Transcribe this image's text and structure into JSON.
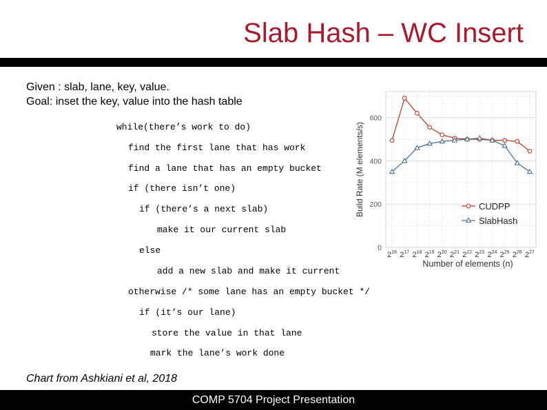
{
  "slide": {
    "title": "Slab Hash – WC Insert",
    "intro_line1": "Given : slab, lane, key, value.",
    "intro_line2": "Goal: inset the key, value into the hash table",
    "code_lines": [
      "while(there’s work to do)",
      "find the first lane that has work",
      "find a lane that has an empty bucket",
      "if (there isn’t one)",
      "if (there’s a next slab)",
      "make it our current slab",
      "else",
      "add a new slab and make it current",
      "otherwise /* some lane has an empty bucket */",
      "if (it’s our lane)",
      "store the value in that lane",
      "mark the lane’s work done"
    ],
    "caption": "Chart from Ashkiani et al, 2018",
    "footer": "COMP 5704 Project Presentation",
    "colors": {
      "title": "#a6192e",
      "bars": "#000000"
    }
  },
  "chart_data": {
    "type": "line",
    "xlabel": "Number of elements (n)",
    "ylabel": "Build Rate (M elements/s)",
    "x_tick_labels": [
      "2^16",
      "2^17",
      "2^18",
      "2^19",
      "2^20",
      "2^21",
      "2^22",
      "2^23",
      "2^24",
      "2^25",
      "2^26",
      "2^27"
    ],
    "x": [
      16,
      17,
      18,
      19,
      20,
      21,
      22,
      23,
      24,
      25,
      26,
      27
    ],
    "y_ticks": [
      0,
      200,
      400,
      600
    ],
    "ylim": [
      0,
      720
    ],
    "grid": true,
    "legend_position": "bottom-right",
    "series": [
      {
        "name": "CUDPP",
        "color": "#c0392b",
        "marker": "circle",
        "values": [
          495,
          690,
          620,
          555,
          520,
          505,
          500,
          500,
          495,
          495,
          490,
          445
        ]
      },
      {
        "name": "SlabHash",
        "color": "#4a6f8a",
        "marker": "triangle",
        "values": [
          350,
          400,
          460,
          480,
          490,
          495,
          500,
          505,
          495,
          470,
          390,
          350
        ]
      }
    ]
  }
}
